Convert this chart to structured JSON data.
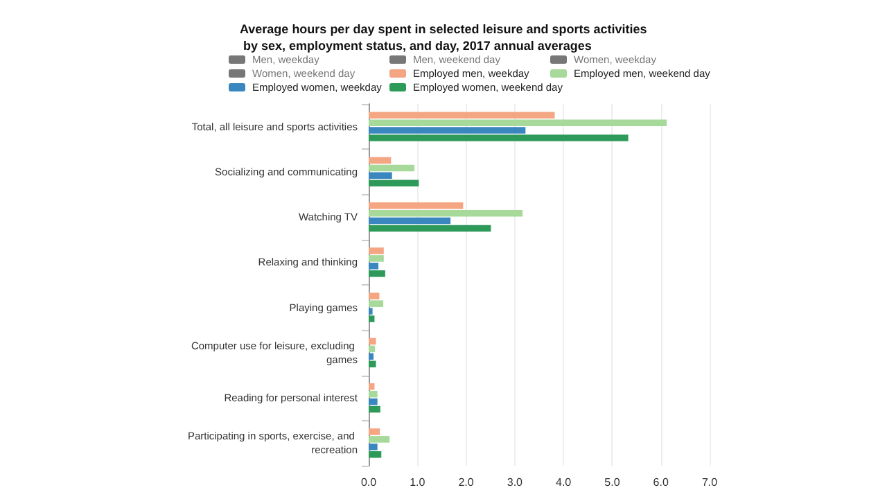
{
  "chart_data": {
    "type": "bar",
    "orientation": "horizontal",
    "title": "Average hours per day spent in selected leisure and sports activities by sex, employment status, and day, 2017 annual averages",
    "categories": [
      "Total, all leisure and sports activities",
      "Socializing and communicating",
      "Watching TV",
      "Relaxing and thinking",
      "Playing games",
      "Computer use for leisure, excluding games",
      "Reading for personal interest",
      "Participating in sports, exercise, and recreation"
    ],
    "series": [
      {
        "name": "Men, weekday",
        "color": "#777777",
        "values": [
          null,
          null,
          null,
          null,
          null,
          null,
          null,
          null
        ]
      },
      {
        "name": "Men, weekend day",
        "color": "#777777",
        "values": [
          null,
          null,
          null,
          null,
          null,
          null,
          null,
          null
        ]
      },
      {
        "name": "Women, weekday",
        "color": "#777777",
        "values": [
          null,
          null,
          null,
          null,
          null,
          null,
          null,
          null
        ]
      },
      {
        "name": "Women, weekend day",
        "color": "#777777",
        "values": [
          null,
          null,
          null,
          null,
          null,
          null,
          null,
          null
        ]
      },
      {
        "name": "Employed men, weekday",
        "color": "#f4a582",
        "values": [
          3.82,
          0.46,
          1.94,
          0.31,
          0.22,
          0.15,
          0.12,
          0.23
        ]
      },
      {
        "name": "Employed men, weekend day",
        "color": "#a6d99a",
        "values": [
          6.12,
          0.94,
          3.16,
          0.31,
          0.3,
          0.13,
          0.18,
          0.43
        ]
      },
      {
        "name": "Employed women, weekday",
        "color": "#3a87c0",
        "values": [
          3.22,
          0.48,
          1.68,
          0.2,
          0.08,
          0.1,
          0.18,
          0.18
        ]
      },
      {
        "name": "Employed women, weekend day",
        "color": "#2e9a5a",
        "values": [
          5.33,
          1.03,
          2.51,
          0.34,
          0.12,
          0.15,
          0.24,
          0.26
        ]
      }
    ],
    "xlim": [
      0,
      7
    ],
    "xticks": [
      {
        "value": 0,
        "label": "0.0"
      },
      {
        "value": 1,
        "label": "1.0"
      },
      {
        "value": 2,
        "label": "2.0"
      },
      {
        "value": 3,
        "label": "3.0"
      },
      {
        "value": 4,
        "label": "4.0"
      },
      {
        "value": 5,
        "label": "5.0"
      },
      {
        "value": 6,
        "label": "6.0"
      },
      {
        "value": 7,
        "label": "7.0"
      }
    ],
    "grid": "x",
    "legend": "top"
  }
}
